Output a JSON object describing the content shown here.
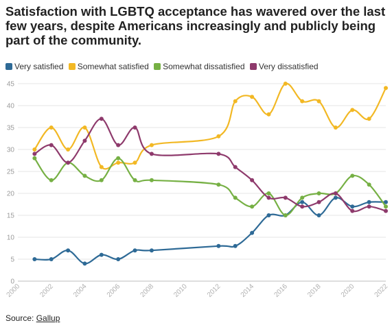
{
  "chart_data": {
    "type": "line",
    "title": "Satisfaction with LGBTQ acceptance has wavered over the last few years, despite Americans increasingly and publicly being part of the community.",
    "xlabel": "",
    "ylabel": "",
    "xlim": [
      2000,
      2022
    ],
    "ylim": [
      0,
      45
    ],
    "x_ticks": [
      "2000",
      "2002",
      "2004",
      "2006",
      "2008",
      "2010",
      "2012",
      "2014",
      "2016",
      "2018",
      "2020",
      "2022"
    ],
    "y_ticks": [
      "0",
      "5",
      "10",
      "15",
      "20",
      "25",
      "30",
      "35",
      "40",
      "45"
    ],
    "grid": "horizontal",
    "legend_position": "top-left",
    "x": [
      2001,
      2002,
      2003,
      2004,
      2005,
      2006,
      2007,
      2008,
      2012,
      2013,
      2014,
      2015,
      2016,
      2017,
      2018,
      2019,
      2020,
      2021,
      2022
    ],
    "series": [
      {
        "name": "Very satisfied",
        "color": "#2e6a96",
        "values": [
          5,
          5,
          7,
          4,
          6,
          5,
          7,
          7,
          8,
          8,
          11,
          15,
          15,
          18,
          15,
          19,
          17,
          18,
          18
        ]
      },
      {
        "name": "Somewhat satisfied",
        "color": "#f2b824",
        "values": [
          30,
          35,
          30,
          35,
          26,
          27,
          27,
          31,
          33,
          41,
          42,
          38,
          45,
          41,
          41,
          35,
          39,
          37,
          44
        ]
      },
      {
        "name": "Somewhat dissatisfied",
        "color": "#76b044",
        "values": [
          28,
          23,
          27,
          24,
          23,
          28,
          23,
          23,
          22,
          19,
          17,
          20,
          15,
          19,
          20,
          20,
          24,
          22,
          17
        ]
      },
      {
        "name": "Very dissatisfied",
        "color": "#8e3a6c",
        "values": [
          29,
          31,
          27,
          32,
          37,
          31,
          35,
          29,
          29,
          26,
          23,
          19,
          19,
          17,
          18,
          20,
          16,
          17,
          16
        ]
      }
    ]
  },
  "source": {
    "label": "Source: ",
    "link_text": "Gallup"
  }
}
